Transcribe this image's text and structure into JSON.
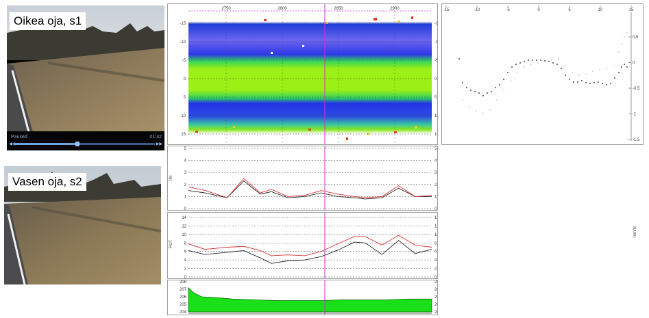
{
  "colors": {
    "cursor": "#cc33cc",
    "series_black": "#222222",
    "series_red": "#e03030",
    "elevation_fill": "#19e019",
    "radar_green": "#8cef10",
    "radar_blue": "#2433e8"
  },
  "cameras": [
    {
      "label": "Oikea oja, s1",
      "player": {
        "status": "Paused",
        "time": "01:42",
        "progress": 0.45
      }
    },
    {
      "label": "Vasen oja, s2"
    }
  ],
  "radar_panel": {
    "x_ticks": [
      "2750",
      "2800",
      "2850",
      "2900"
    ],
    "y_ticks_left": [
      "-15",
      "-10",
      "-5",
      "0",
      "5",
      "10",
      "15"
    ],
    "y_ticks_right": [
      "-15",
      "-10",
      "-5",
      "0",
      "5",
      "10",
      "15"
    ]
  },
  "profile_panel": {
    "x_ticks": [
      "-15",
      "-10",
      "-5",
      "0",
      "5",
      "10",
      "15"
    ],
    "y_ticks_right": [
      "0,5",
      "0",
      "-0,5",
      "-1",
      "-1,5"
    ]
  },
  "iri_panel": {
    "y_label": "IRI",
    "y_ticks": [
      "5",
      "4",
      "3",
      "2",
      "1",
      "0"
    ]
  },
  "rut_panel": {
    "y_label": "RUT",
    "y_ticks": [
      "14",
      "12",
      "10",
      "8",
      "6",
      "4",
      "2",
      "0"
    ],
    "unit_label": "mm/m"
  },
  "elevation_panel": {
    "y_ticks": [
      "208",
      "207",
      "206",
      "205",
      "204"
    ]
  },
  "chart_data": [
    {
      "type": "line",
      "title": "",
      "ylabel": "IRI",
      "ylim": [
        0,
        5
      ],
      "x": [
        2700,
        2715,
        2735,
        2750,
        2765,
        2775,
        2790,
        2805,
        2820,
        2835,
        2850,
        2860,
        2875,
        2890,
        2905,
        2920
      ],
      "series": [
        {
          "values": [
            1.5,
            1.3,
            0.9,
            2.3,
            1.2,
            1.4,
            0.9,
            1.0,
            1.3,
            1.0,
            0.9,
            0.8,
            0.9,
            1.7,
            1.0,
            1.0
          ]
        },
        {
          "values": [
            1.8,
            1.5,
            0.9,
            2.5,
            1.3,
            1.6,
            1.0,
            1.1,
            1.5,
            1.2,
            1.0,
            0.9,
            1.0,
            1.9,
            1.0,
            1.1
          ]
        }
      ]
    },
    {
      "type": "line",
      "title": "",
      "ylabel": "RUT",
      "ylim": [
        0,
        14
      ],
      "x": [
        2700,
        2715,
        2735,
        2750,
        2765,
        2775,
        2790,
        2805,
        2820,
        2835,
        2850,
        2860,
        2875,
        2890,
        2905,
        2920
      ],
      "series": [
        {
          "values": [
            6.2,
            5.3,
            5.8,
            6.2,
            4.5,
            3.2,
            3.8,
            4.0,
            4.8,
            6.3,
            8.2,
            8.0,
            5.3,
            8.6,
            5.5,
            6.5
          ]
        },
        {
          "values": [
            7.8,
            6.5,
            7.0,
            7.2,
            6.2,
            5.0,
            5.2,
            5.0,
            6.0,
            7.8,
            9.5,
            9.5,
            7.5,
            9.8,
            7.5,
            7.0
          ]
        }
      ]
    },
    {
      "type": "area",
      "title": "",
      "ylim": [
        204,
        208
      ],
      "x": [
        2700,
        2705,
        2712,
        2725,
        2740,
        2760,
        2780,
        2800,
        2820,
        2840,
        2860,
        2880,
        2900,
        2920
      ],
      "series": [
        {
          "values": [
            207.2,
            206.5,
            206.0,
            205.9,
            205.7,
            205.6,
            205.5,
            205.5,
            205.5,
            205.6,
            205.6,
            205.6,
            205.7,
            205.7
          ]
        }
      ]
    }
  ]
}
